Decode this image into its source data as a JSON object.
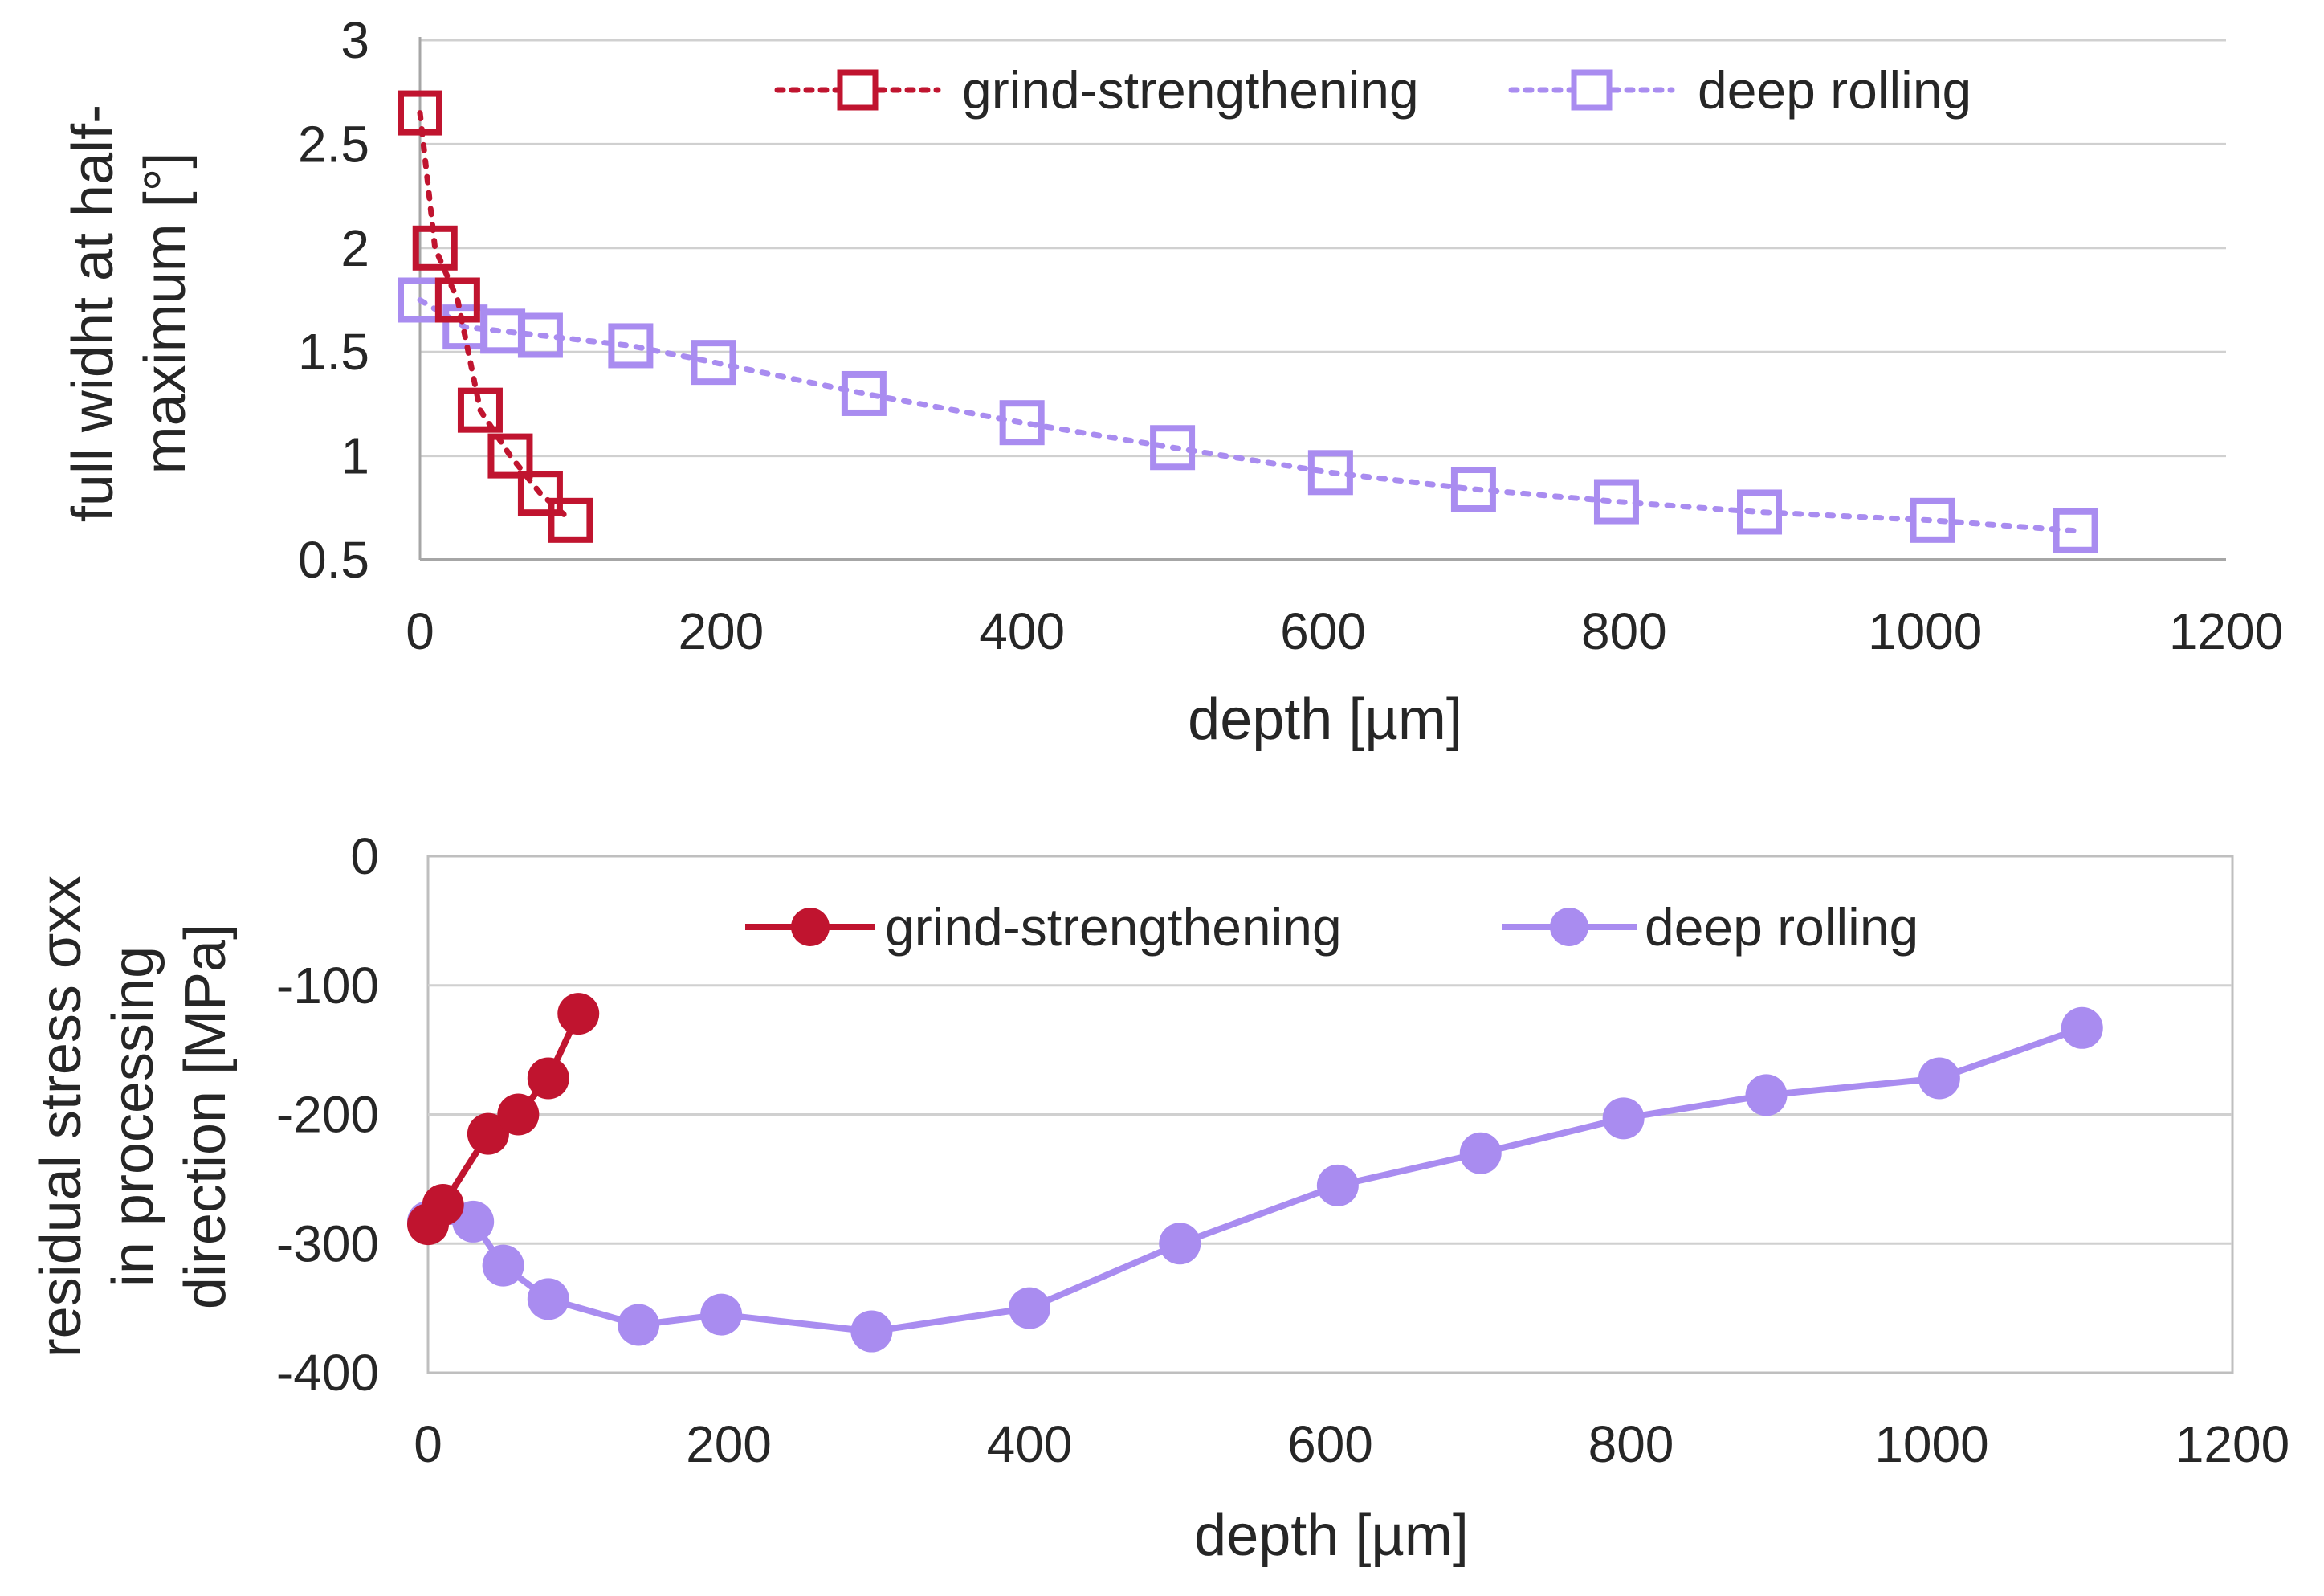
{
  "colors": {
    "grind": "#c0142f",
    "deep": "#a98cf0",
    "grid": "#d0d0d0",
    "axis": "#a6a6a6",
    "text": "#262626"
  },
  "chart_data": [
    {
      "type": "line",
      "title": "",
      "xlabel": "depth [µm]",
      "ylabel_lines": [
        "full widht at half-",
        "maximum [°]"
      ],
      "xlim": [
        0,
        1200
      ],
      "ylim": [
        0.5,
        3
      ],
      "x_ticks": [
        "0",
        "200",
        "400",
        "600",
        "800",
        "1000",
        "1200"
      ],
      "y_ticks": [
        "0.5",
        "1",
        "1.5",
        "2",
        "2.5",
        "3"
      ],
      "grid": true,
      "legend_position": "top",
      "marker": "square-open",
      "line_style": "dotted",
      "series": [
        {
          "name": "grind-strengthening",
          "x": [
            0,
            10,
            25,
            40,
            60,
            80,
            100
          ],
          "y": [
            2.65,
            2.0,
            1.75,
            1.22,
            1.0,
            0.82,
            0.69
          ]
        },
        {
          "name": "deep rolling",
          "x": [
            0,
            30,
            55,
            80,
            140,
            195,
            295,
            400,
            500,
            605,
            700,
            795,
            890,
            1005,
            1100
          ],
          "y": [
            1.75,
            1.62,
            1.6,
            1.58,
            1.53,
            1.45,
            1.3,
            1.16,
            1.04,
            0.92,
            0.84,
            0.78,
            0.73,
            0.69,
            0.64
          ]
        }
      ]
    },
    {
      "type": "line",
      "title": "",
      "xlabel": "depth [µm]",
      "ylabel_lines": [
        "residual stress σxx",
        "in processing",
        "direction [MPa]"
      ],
      "xlim": [
        0,
        1200
      ],
      "ylim": [
        -400,
        0
      ],
      "x_ticks": [
        "0",
        "200",
        "400",
        "600",
        "800",
        "1000",
        "1200"
      ],
      "y_ticks": [
        "-400",
        "-300",
        "-200",
        "-100",
        "0"
      ],
      "grid": true,
      "legend_position": "top",
      "marker": "circle-filled",
      "line_style": "solid",
      "series": [
        {
          "name": "grind-strengthening",
          "x": [
            0,
            10,
            40,
            60,
            80,
            100
          ],
          "y": [
            -285,
            -270,
            -215,
            -200,
            -172,
            -122
          ]
        },
        {
          "name": "deep rolling",
          "x": [
            0,
            30,
            50,
            80,
            140,
            195,
            295,
            400,
            500,
            605,
            700,
            795,
            890,
            1005,
            1100
          ],
          "y": [
            -283,
            -283,
            -317,
            -343,
            -363,
            -355,
            -368,
            -350,
            -300,
            -255,
            -230,
            -203,
            -185,
            -172,
            -133
          ]
        }
      ]
    }
  ]
}
